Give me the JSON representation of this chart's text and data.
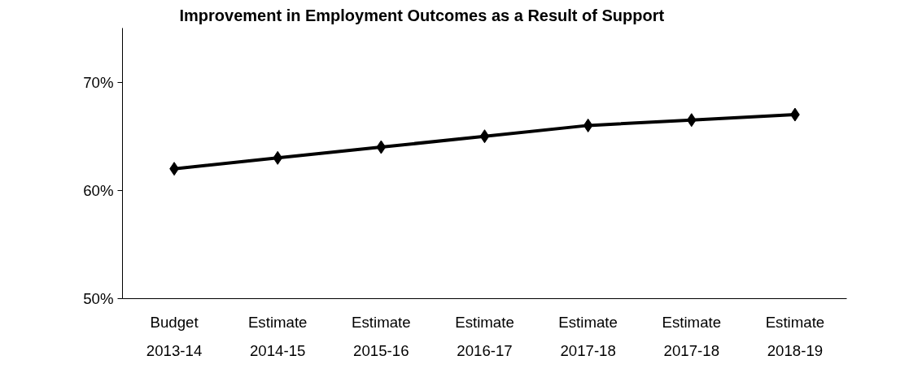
{
  "chart_data": {
    "type": "line",
    "title": "Improvement in Employment Outcomes as a Result of Support",
    "categories": [
      "Budget\n2013-14",
      "Estimate\n2014-15",
      "Estimate\n2015-16",
      "Estimate\n2016-17",
      "Estimate\n2017-18",
      "Estimate\n2017-18",
      "Estimate\n2018-19"
    ],
    "series": [
      {
        "color": "#000000",
        "values": [
          62,
          63,
          64,
          65,
          66,
          66.5,
          67
        ]
      }
    ],
    "ylim": [
      50,
      75
    ],
    "yticks": [
      {
        "value": 50,
        "label": "50%"
      },
      {
        "value": 60,
        "label": "60%"
      },
      {
        "value": 70,
        "label": "70%"
      }
    ],
    "marker": "diamond",
    "line_style": "solid",
    "grid": false
  }
}
